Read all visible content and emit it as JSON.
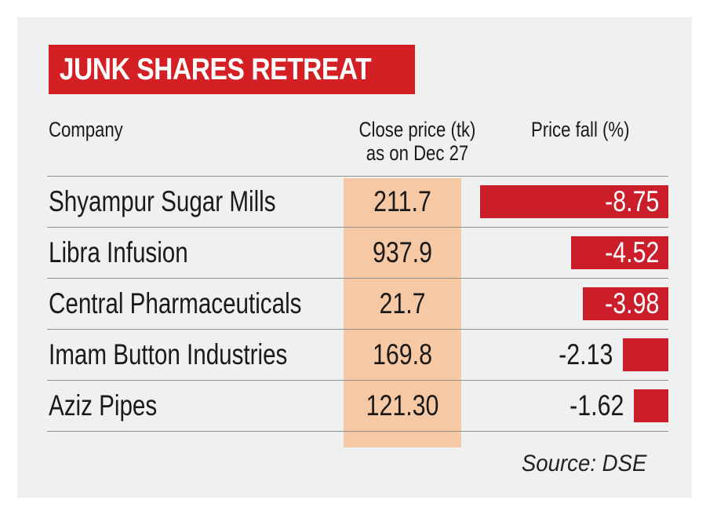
{
  "title": "JUNK SHARES RETREAT",
  "headers": {
    "company": "Company",
    "close_line1": "Close price (tk)",
    "close_line2": "as on Dec 27",
    "fall": "Price fall (%)"
  },
  "source": "Source: DSE",
  "colors": {
    "title_bg": "#d41f25",
    "bar": "#cc1d2a",
    "close_column_bg": "#f6c8a3",
    "card_bg": "#eef1ef"
  },
  "chart_data": {
    "type": "bar",
    "categories": [
      "Shyampur Sugar Mills",
      "Libra Infusion",
      "Central Pharmaceuticals",
      "Imam Button Industries",
      "Aziz Pipes"
    ],
    "close_prices": [
      "211.7",
      "937.9",
      "21.7",
      "169.8",
      "121.30"
    ],
    "values": [
      -8.75,
      -4.52,
      -3.98,
      -2.13,
      -1.62
    ],
    "value_labels": [
      "-8.75",
      "-4.52",
      "-3.98",
      "-2.13",
      "-1.62"
    ]
  }
}
